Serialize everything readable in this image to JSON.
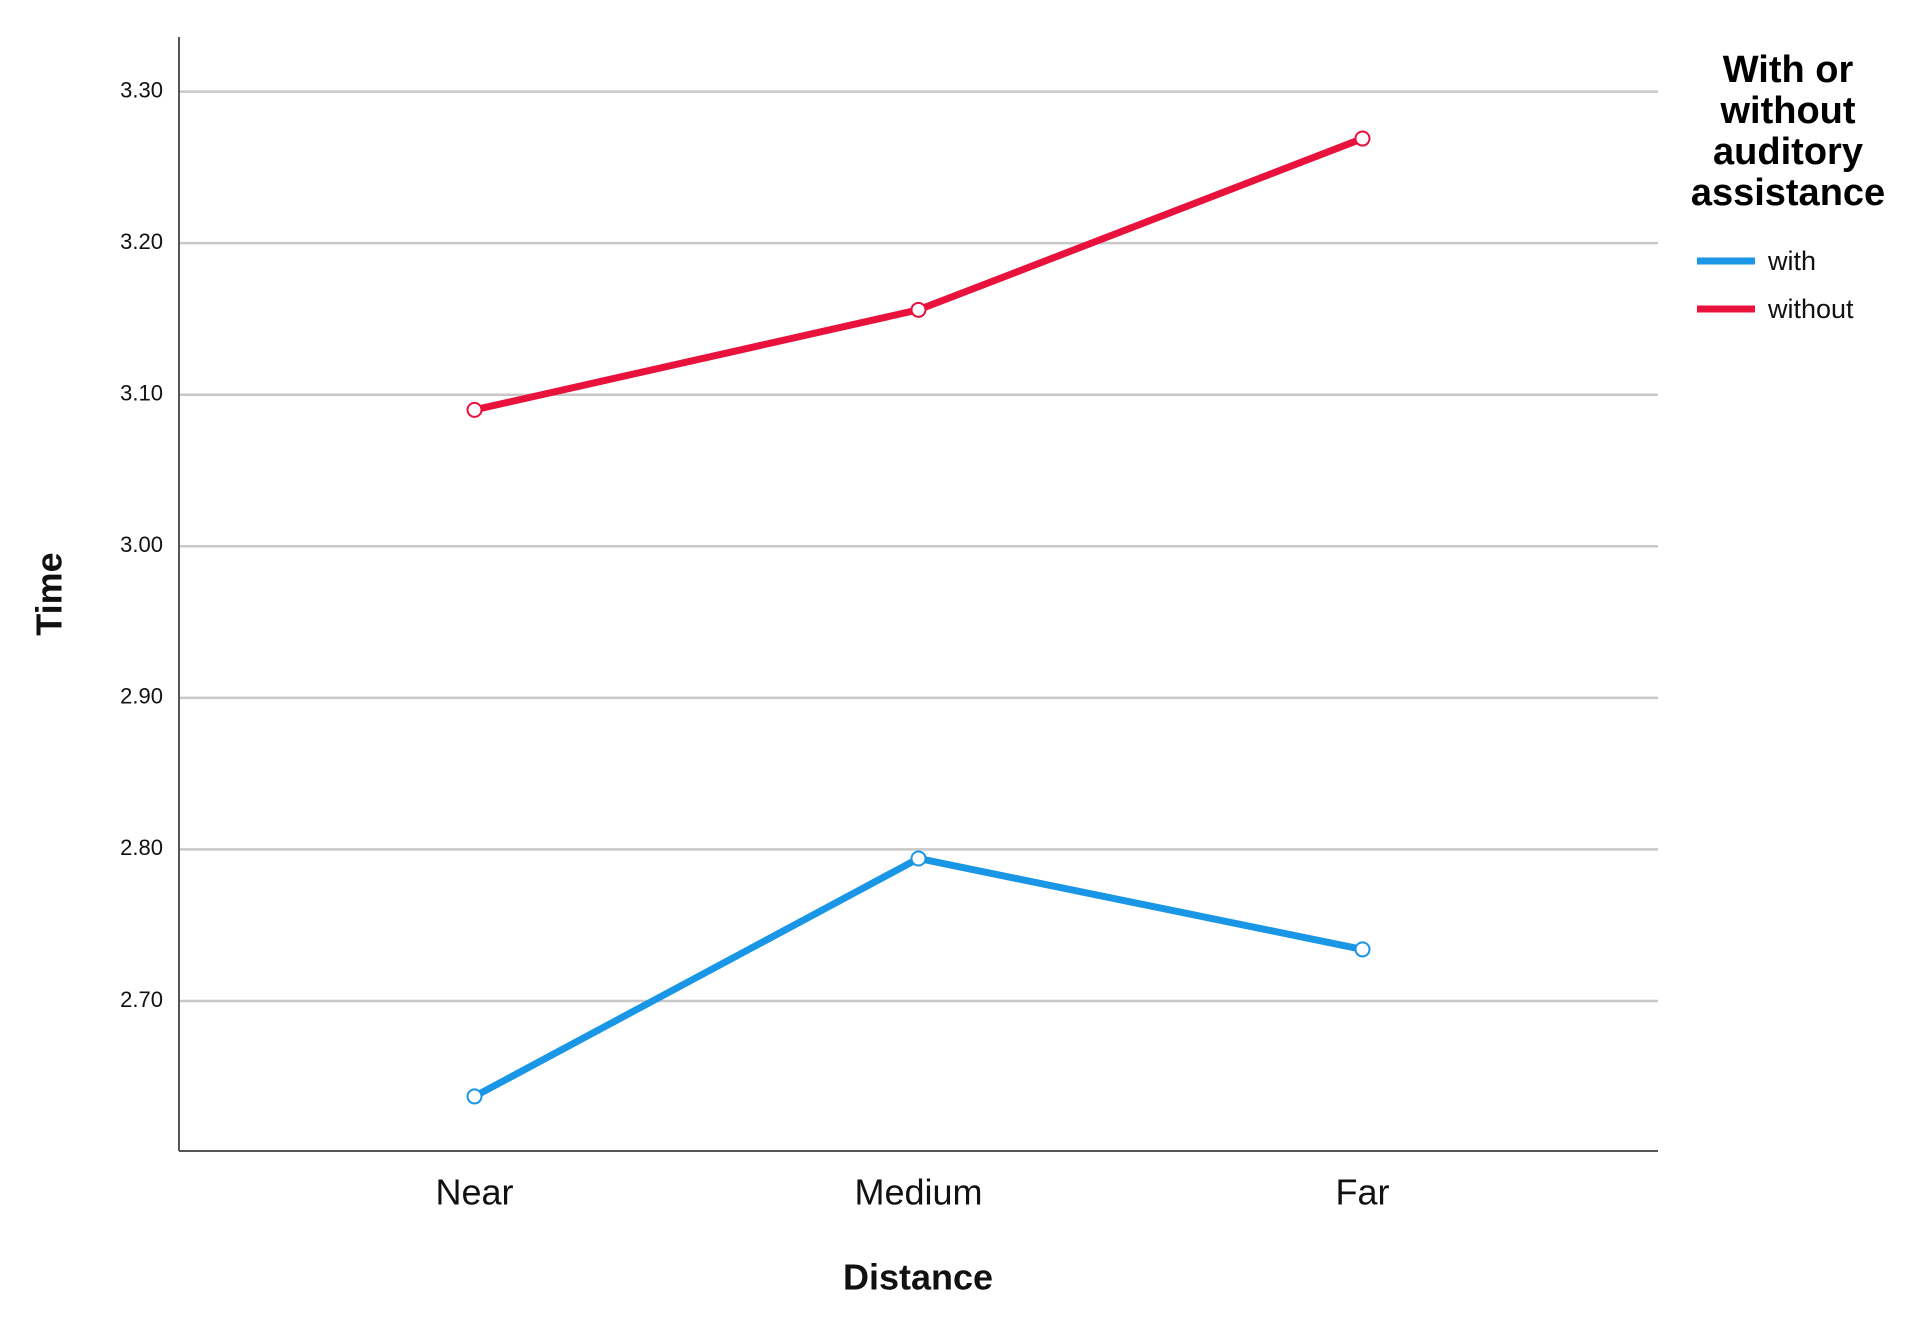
{
  "chart_data": {
    "type": "line",
    "x_label": "Distance",
    "y_label": "Time",
    "legend_title": "With or without auditory assistance",
    "categories": [
      "Near",
      "Medium",
      "Far"
    ],
    "series": [
      {
        "name": "with",
        "color": "#1a96e6",
        "values": [
          2.637,
          2.794,
          2.734
        ]
      },
      {
        "name": "without",
        "color": "#e8123c",
        "values": [
          3.09,
          3.156,
          3.269
        ]
      }
    ],
    "ylim": [
      2.601,
      3.336
    ],
    "yticks": [
      {
        "value": 2.7,
        "label": "2.70"
      },
      {
        "value": 2.8,
        "label": "2.80"
      },
      {
        "value": 2.9,
        "label": "2.90"
      },
      {
        "value": 3.0,
        "label": "3.00"
      },
      {
        "value": 3.1,
        "label": "3.10"
      },
      {
        "value": 3.2,
        "label": "3.20"
      },
      {
        "value": 3.3,
        "label": "3.30"
      }
    ],
    "grid": true,
    "legend": "right"
  }
}
